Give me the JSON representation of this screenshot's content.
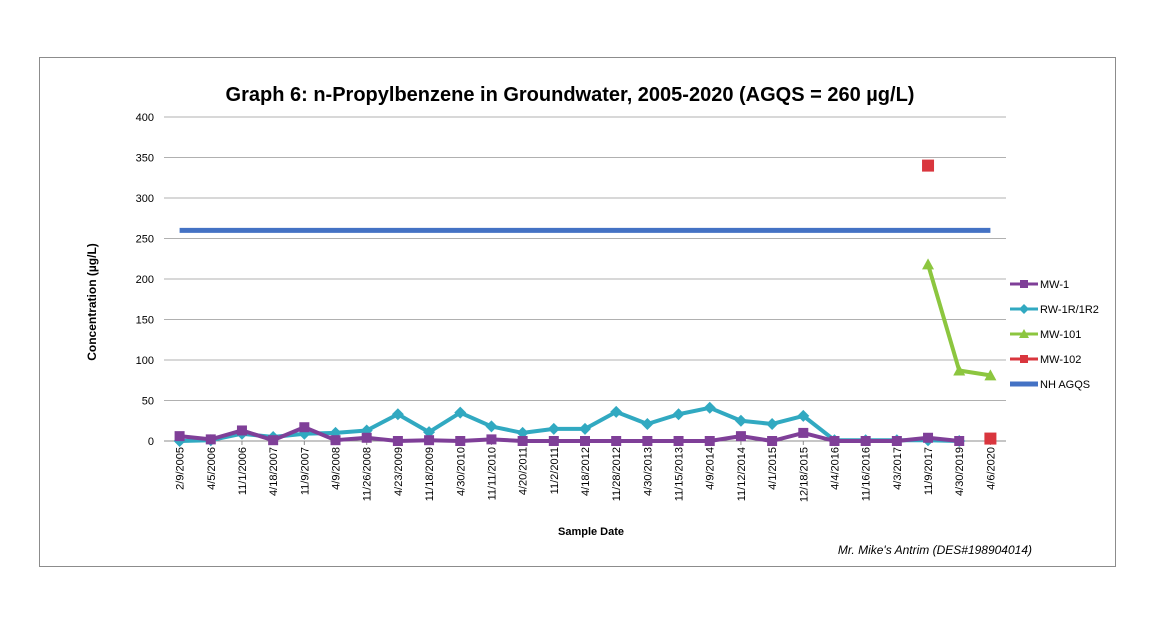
{
  "chart_data": {
    "type": "line",
    "title": "Graph 6: n-Propylbenzene in Groundwater, 2005-2020 (AGQS = 260 µg/L)",
    "xlabel": "Sample Date",
    "ylabel": "Concentration (µg/L)",
    "ylim": [
      0,
      400
    ],
    "yticks": [
      0,
      50,
      100,
      150,
      200,
      250,
      300,
      350,
      400
    ],
    "grid": true,
    "legend_position": "right",
    "categories": [
      "2/9/2005",
      "4/5/2006",
      "11/1/2006",
      "4/18/2007",
      "11/9/2007",
      "4/9/2008",
      "11/26/2008",
      "4/23/2009",
      "11/18/2009",
      "4/30/2010",
      "11/11/2010",
      "4/20/2011",
      "11/2/2011",
      "4/18/2012",
      "11/28/2012",
      "4/30/2013",
      "11/15/2013",
      "4/9/2014",
      "11/12/2014",
      "4/1/2015",
      "12/18/2015",
      "4/4/2016",
      "11/16/2016",
      "4/3/2017",
      "11/9/2017",
      "4/30/2019",
      "4/6/2020"
    ],
    "series": [
      {
        "name": "MW-1",
        "color": "#7f3f98",
        "marker": "square",
        "values": [
          6,
          2,
          13,
          1,
          17,
          1,
          4,
          0,
          1,
          0,
          2,
          0,
          0,
          0,
          0,
          0,
          0,
          0,
          6,
          0,
          10,
          0,
          0,
          0,
          4,
          0,
          null
        ]
      },
      {
        "name": "RW-1R/1R2",
        "color": "#31a9c1",
        "marker": "diamond",
        "values": [
          0,
          1,
          9,
          5,
          9,
          10,
          13,
          33,
          11,
          35,
          18,
          10,
          15,
          15,
          36,
          21,
          33,
          41,
          25,
          21,
          31,
          1,
          1,
          1,
          1,
          0,
          null
        ]
      },
      {
        "name": "MW-101",
        "color": "#8cc63f",
        "marker": "triangle",
        "values": [
          null,
          null,
          null,
          null,
          null,
          null,
          null,
          null,
          null,
          null,
          null,
          null,
          null,
          null,
          null,
          null,
          null,
          null,
          null,
          null,
          null,
          null,
          null,
          null,
          218,
          87,
          81
        ]
      },
      {
        "name": "MW-102",
        "color": "#d9363e",
        "marker": "square",
        "values": [
          null,
          null,
          null,
          null,
          null,
          null,
          null,
          null,
          null,
          null,
          null,
          null,
          null,
          null,
          null,
          null,
          null,
          null,
          null,
          null,
          null,
          null,
          null,
          null,
          340,
          null,
          3
        ]
      },
      {
        "name": "NH AGQS",
        "color": "#4472c4",
        "marker": "none",
        "values": [
          260,
          260,
          260,
          260,
          260,
          260,
          260,
          260,
          260,
          260,
          260,
          260,
          260,
          260,
          260,
          260,
          260,
          260,
          260,
          260,
          260,
          260,
          260,
          260,
          260,
          260,
          260
        ]
      }
    ]
  },
  "credit": "Mr. Mike's Antrim (DES#198904014)"
}
